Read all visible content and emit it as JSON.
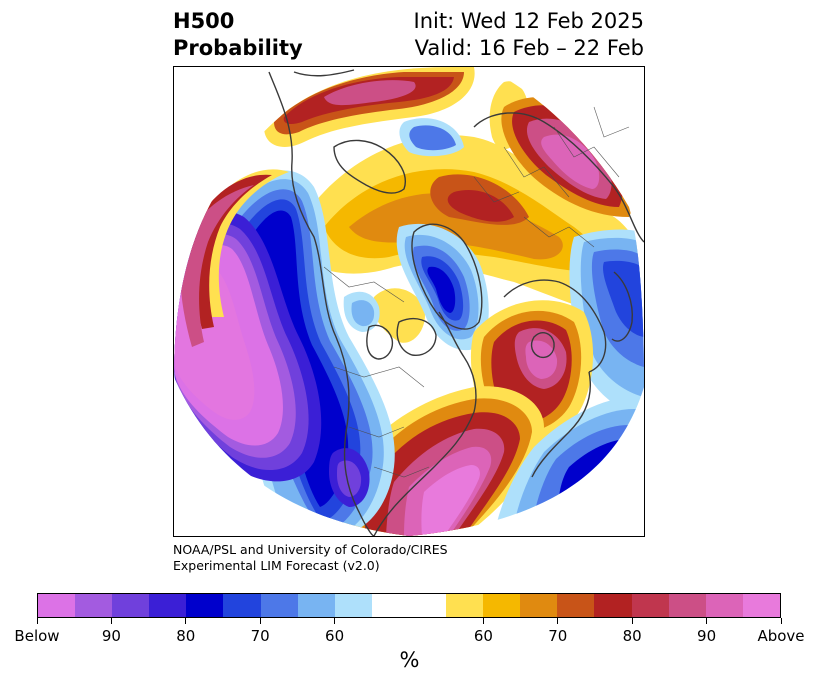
{
  "title": {
    "line1_left": "H500",
    "line2_left": "Probability",
    "line1_right": "Init: Wed 12 Feb 2025",
    "line2_right": "Valid: 16 Feb – 22 Feb"
  },
  "credit": {
    "line1": "NOAA/PSL and University of Colorado/CIRES",
    "line2": "Experimental LIM Forecast (v2.0)"
  },
  "colorbar": {
    "colors": [
      "#dc72e6",
      "#a35be0",
      "#7040dc",
      "#3b1fd6",
      "#0000cc",
      "#2244dd",
      "#4d78e8",
      "#78b4f2",
      "#aee0fb",
      "#ffffff",
      "#ffffff",
      "#ffe050",
      "#f5b800",
      "#e08a10",
      "#c85418",
      "#b22222",
      "#c0364e",
      "#cc4f86",
      "#dc64b8",
      "#e87adc"
    ],
    "tick_labels": [
      "Below",
      "90",
      "80",
      "70",
      "60",
      "60",
      "70",
      "80",
      "90",
      "Above"
    ],
    "unit": "%"
  },
  "map": {
    "projection": "north-polar-stereographic",
    "anomalies": [
      {
        "region": "Northeast Pacific / Gulf of Alaska",
        "sign": "below",
        "level": "Below"
      },
      {
        "region": "Western North America coast",
        "sign": "below",
        "level": 80
      },
      {
        "region": "North Atlantic / Greenland",
        "sign": "below",
        "level": 90
      },
      {
        "region": "Southwest US / Mexico",
        "sign": "below",
        "level": 90
      },
      {
        "region": "Western Russia",
        "sign": "below",
        "level": 80
      },
      {
        "region": "Eastern North America / Western Atlantic",
        "sign": "above",
        "level": "Above"
      },
      {
        "region": "Central North Atlantic",
        "sign": "above",
        "level": 90
      },
      {
        "region": "Bering Sea / East Siberia",
        "sign": "above",
        "level": 90
      },
      {
        "region": "Arctic Canada",
        "sign": "above",
        "level": 70
      },
      {
        "region": "Scandinavia / Siberia",
        "sign": "above",
        "level": 80
      },
      {
        "region": "Northern Europe / Russia",
        "sign": "above",
        "level": 90
      }
    ]
  }
}
